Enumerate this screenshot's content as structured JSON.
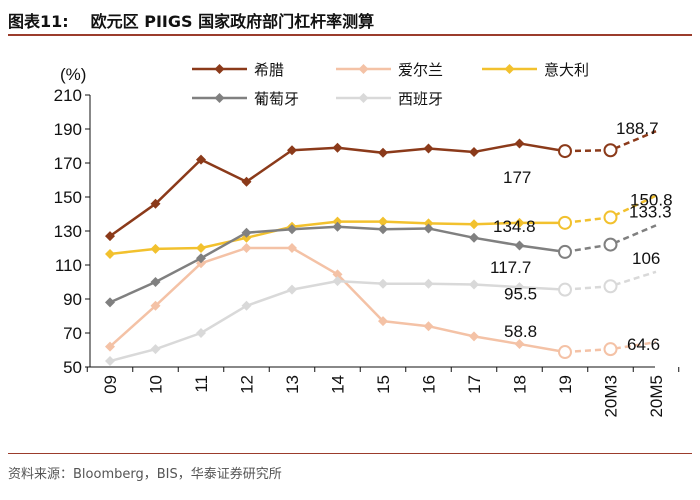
{
  "header": {
    "figure_number": "图表11:",
    "title": "欧元区 PIIGS 国家政府部门杠杆率测算"
  },
  "footer": {
    "source": "资料来源：Bloomberg，BIS，华泰证券研究所"
  },
  "chart_data": {
    "type": "line",
    "title": "欧元区 PIIGS 国家政府部门杠杆率测算",
    "ylabel": "(%)",
    "ylim": [
      50,
      210
    ],
    "yticks": [
      50,
      70,
      90,
      110,
      130,
      150,
      170,
      190,
      210
    ],
    "categories": [
      "09",
      "10",
      "11",
      "12",
      "13",
      "14",
      "15",
      "16",
      "17",
      "18",
      "19",
      "20M3",
      "20M5"
    ],
    "actual_until_index": 10,
    "series": [
      {
        "name": "希腊",
        "color": "#8b3a1a",
        "marker": "diamond",
        "values": [
          127,
          146,
          172,
          159,
          177.5,
          179,
          176,
          178.5,
          176.5,
          181.5,
          177,
          177.5,
          188.7
        ]
      },
      {
        "name": "爱尔兰",
        "color": "#f4c2a6",
        "marker": "diamond",
        "values": [
          62,
          86,
          111,
          120,
          120,
          104.5,
          77,
          74,
          68,
          63.5,
          58.8,
          60.5,
          64.6
        ]
      },
      {
        "name": "意大利",
        "color": "#f2c12e",
        "marker": "diamond",
        "values": [
          116.5,
          119.5,
          120,
          126,
          132.5,
          135.5,
          135.5,
          134.5,
          134,
          134.8,
          134.8,
          138,
          150.8
        ]
      },
      {
        "name": "葡萄牙",
        "color": "#808080",
        "marker": "diamond",
        "values": [
          88,
          100,
          114,
          129,
          131,
          132.5,
          131,
          131.5,
          126,
          121.5,
          117.7,
          122,
          133.3
        ]
      },
      {
        "name": "西班牙",
        "color": "#d9d9d9",
        "marker": "diamond",
        "values": [
          53.5,
          60.5,
          70,
          86,
          95.5,
          100.5,
          99,
          99,
          98.5,
          97,
          95.5,
          97.5,
          106
        ]
      }
    ],
    "annotations": [
      {
        "series": "希腊",
        "index": 10,
        "text": "177"
      },
      {
        "series": "希腊",
        "index": 12,
        "text": "188.7"
      },
      {
        "series": "意大利",
        "index": 10,
        "text": "134.8"
      },
      {
        "series": "意大利",
        "index": 12,
        "text": "150.8"
      },
      {
        "series": "葡萄牙",
        "index": 10,
        "text": "117.7"
      },
      {
        "series": "葡萄牙",
        "index": 12,
        "text": "133.3"
      },
      {
        "series": "西班牙",
        "index": 10,
        "text": "95.5"
      },
      {
        "series": "西班牙",
        "index": 12,
        "text": "106"
      },
      {
        "series": "爱尔兰",
        "index": 10,
        "text": "58.8"
      },
      {
        "series": "爱尔兰",
        "index": 12,
        "text": "64.6"
      }
    ],
    "legend_order": [
      "希腊",
      "爱尔兰",
      "意大利",
      "葡萄牙",
      "西班牙"
    ]
  }
}
